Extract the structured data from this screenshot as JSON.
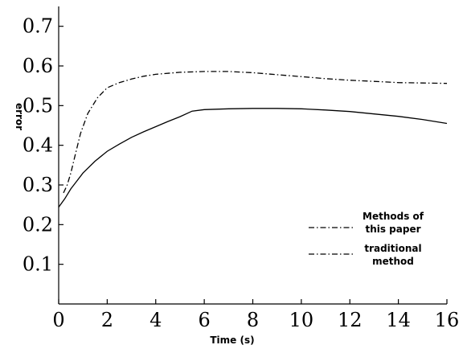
{
  "chart_data": {
    "type": "line",
    "title": "",
    "xlabel": "Time (s)",
    "ylabel": "error",
    "xlim": [
      0,
      16
    ],
    "ylim": [
      0,
      0.75
    ],
    "xticks": [
      0,
      2,
      4,
      6,
      8,
      10,
      12,
      14,
      16
    ],
    "xtick_labels": [
      "0",
      "2",
      "4",
      "6",
      "8",
      "10",
      "12",
      "14",
      "16"
    ],
    "yticks": [
      0.1,
      0.2,
      0.3,
      0.4,
      0.5,
      0.6,
      0.7
    ],
    "ytick_labels": [
      "0.1",
      "0.2",
      "0.3",
      "0.4",
      "0.5",
      "0.6",
      "0.7"
    ],
    "grid": false,
    "legend_position": "lower-right",
    "series": [
      {
        "name": "Methods of this paper",
        "style": "dash-dot",
        "x": [
          0.2,
          0.35,
          0.5,
          0.7,
          0.9,
          1.2,
          1.6,
          2.0,
          2.5,
          3.0,
          3.5,
          4.0,
          5.0,
          6.0,
          7.0,
          8.0,
          9.0,
          10.0,
          11.0,
          12.0,
          13.0,
          14.0,
          15.0,
          16.0
        ],
        "values": [
          0.28,
          0.3,
          0.33,
          0.38,
          0.43,
          0.48,
          0.52,
          0.545,
          0.558,
          0.567,
          0.574,
          0.579,
          0.584,
          0.586,
          0.586,
          0.583,
          0.578,
          0.573,
          0.568,
          0.564,
          0.561,
          0.558,
          0.557,
          0.556
        ]
      },
      {
        "name": "traditional method",
        "style": "solid",
        "x": [
          0.0,
          0.25,
          0.5,
          0.75,
          1.0,
          1.5,
          2.0,
          2.5,
          3.0,
          3.5,
          4.0,
          4.5,
          5.0,
          5.5,
          6.0,
          7.0,
          8.0,
          9.0,
          10.0,
          11.0,
          12.0,
          13.0,
          14.0,
          15.0,
          16.0
        ],
        "values": [
          0.244,
          0.265,
          0.29,
          0.31,
          0.33,
          0.36,
          0.385,
          0.403,
          0.42,
          0.434,
          0.447,
          0.46,
          0.472,
          0.486,
          0.49,
          0.492,
          0.493,
          0.493,
          0.492,
          0.489,
          0.485,
          0.479,
          0.473,
          0.465,
          0.455
        ]
      }
    ]
  },
  "legend": [
    {
      "line1": "Methods of",
      "line2": "this paper"
    },
    {
      "line1": "traditional",
      "line2": "method"
    }
  ]
}
